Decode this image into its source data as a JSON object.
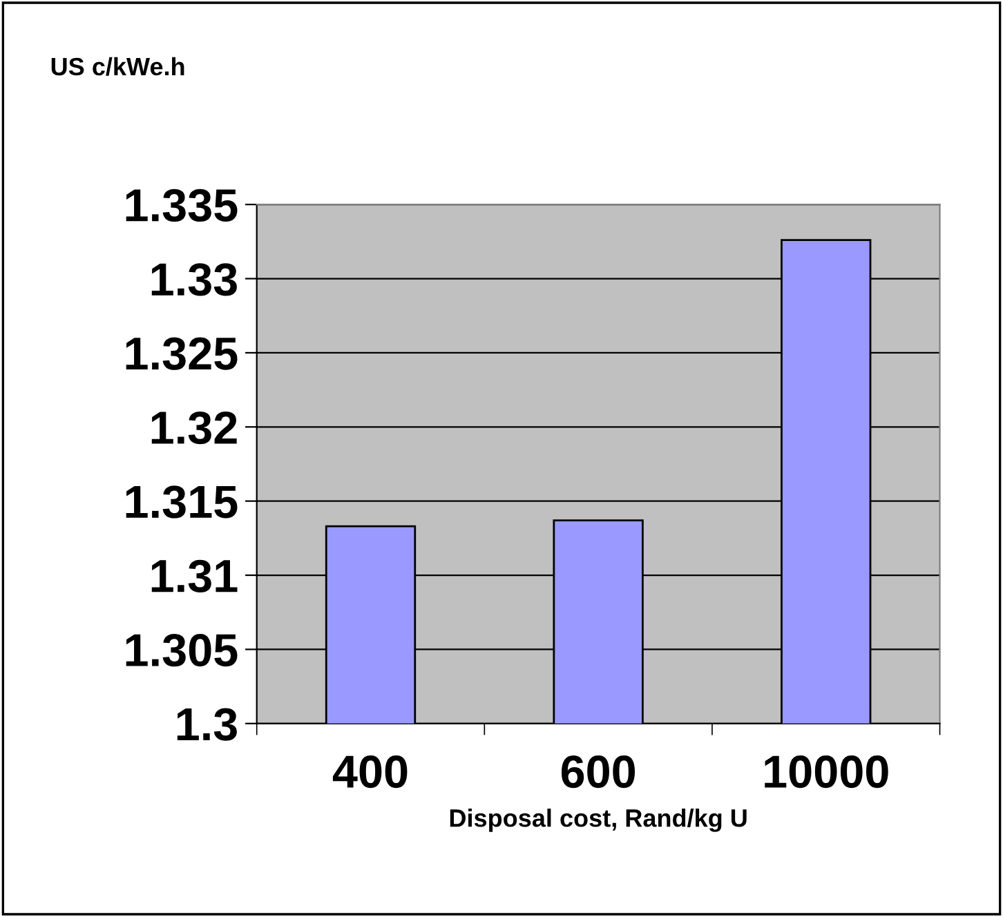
{
  "chart_data": {
    "type": "bar",
    "title": "US c/kWe.h",
    "xlabel": "Disposal cost, Rand/kg U",
    "categories": [
      "400",
      "600",
      "10000"
    ],
    "values": [
      1.3133,
      1.3137,
      1.3326
    ],
    "color": "#9999ff",
    "ylim": [
      1.3,
      1.335
    ],
    "yticks": [
      1.3,
      1.305,
      1.31,
      1.315,
      1.32,
      1.325,
      1.33,
      1.335
    ],
    "grid": "y"
  }
}
